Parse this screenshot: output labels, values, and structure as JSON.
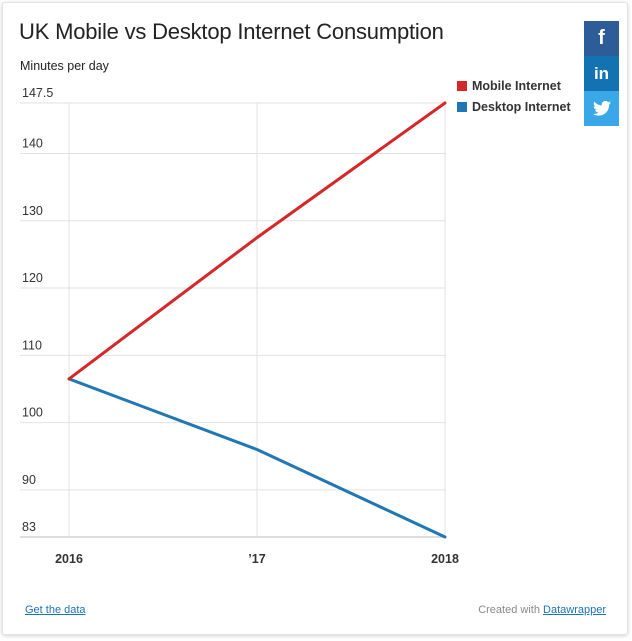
{
  "chart_data": {
    "type": "line",
    "title": "UK Mobile vs Desktop Internet Consumption",
    "ylabel": "Minutes per day",
    "xlabel": "",
    "x": [
      2016,
      2017,
      2018
    ],
    "x_tick_labels": [
      "2016",
      "’17",
      "2018"
    ],
    "ylim": [
      83,
      147.5
    ],
    "y_ticks": [
      83,
      90,
      100,
      110,
      120,
      130,
      140,
      147.5
    ],
    "y_tick_labels": [
      "83",
      "90",
      "100",
      "110",
      "120",
      "130",
      "140",
      "147.5"
    ],
    "grid": true,
    "legend_position": "top-right",
    "series": [
      {
        "name": "Mobile Internet",
        "color": "#d62728",
        "values": [
          106.5,
          127.5,
          147.5
        ]
      },
      {
        "name": "Desktop Internet",
        "color": "#1f77b4",
        "values": [
          106.5,
          96,
          83
        ]
      }
    ]
  },
  "share": [
    {
      "name": "facebook",
      "glyph": "f",
      "icon": "facebook-icon",
      "color": "#2d5d98"
    },
    {
      "name": "linkedin",
      "glyph": "in",
      "icon": "linkedin-icon",
      "color": "#1373b2"
    },
    {
      "name": "twitter",
      "glyph": "",
      "icon": "twitter-icon",
      "color": "#3aa7e8"
    }
  ],
  "footer": {
    "data_link": "Get the data",
    "credit_prefix": "Created with",
    "credit_link": "Datawrapper"
  }
}
